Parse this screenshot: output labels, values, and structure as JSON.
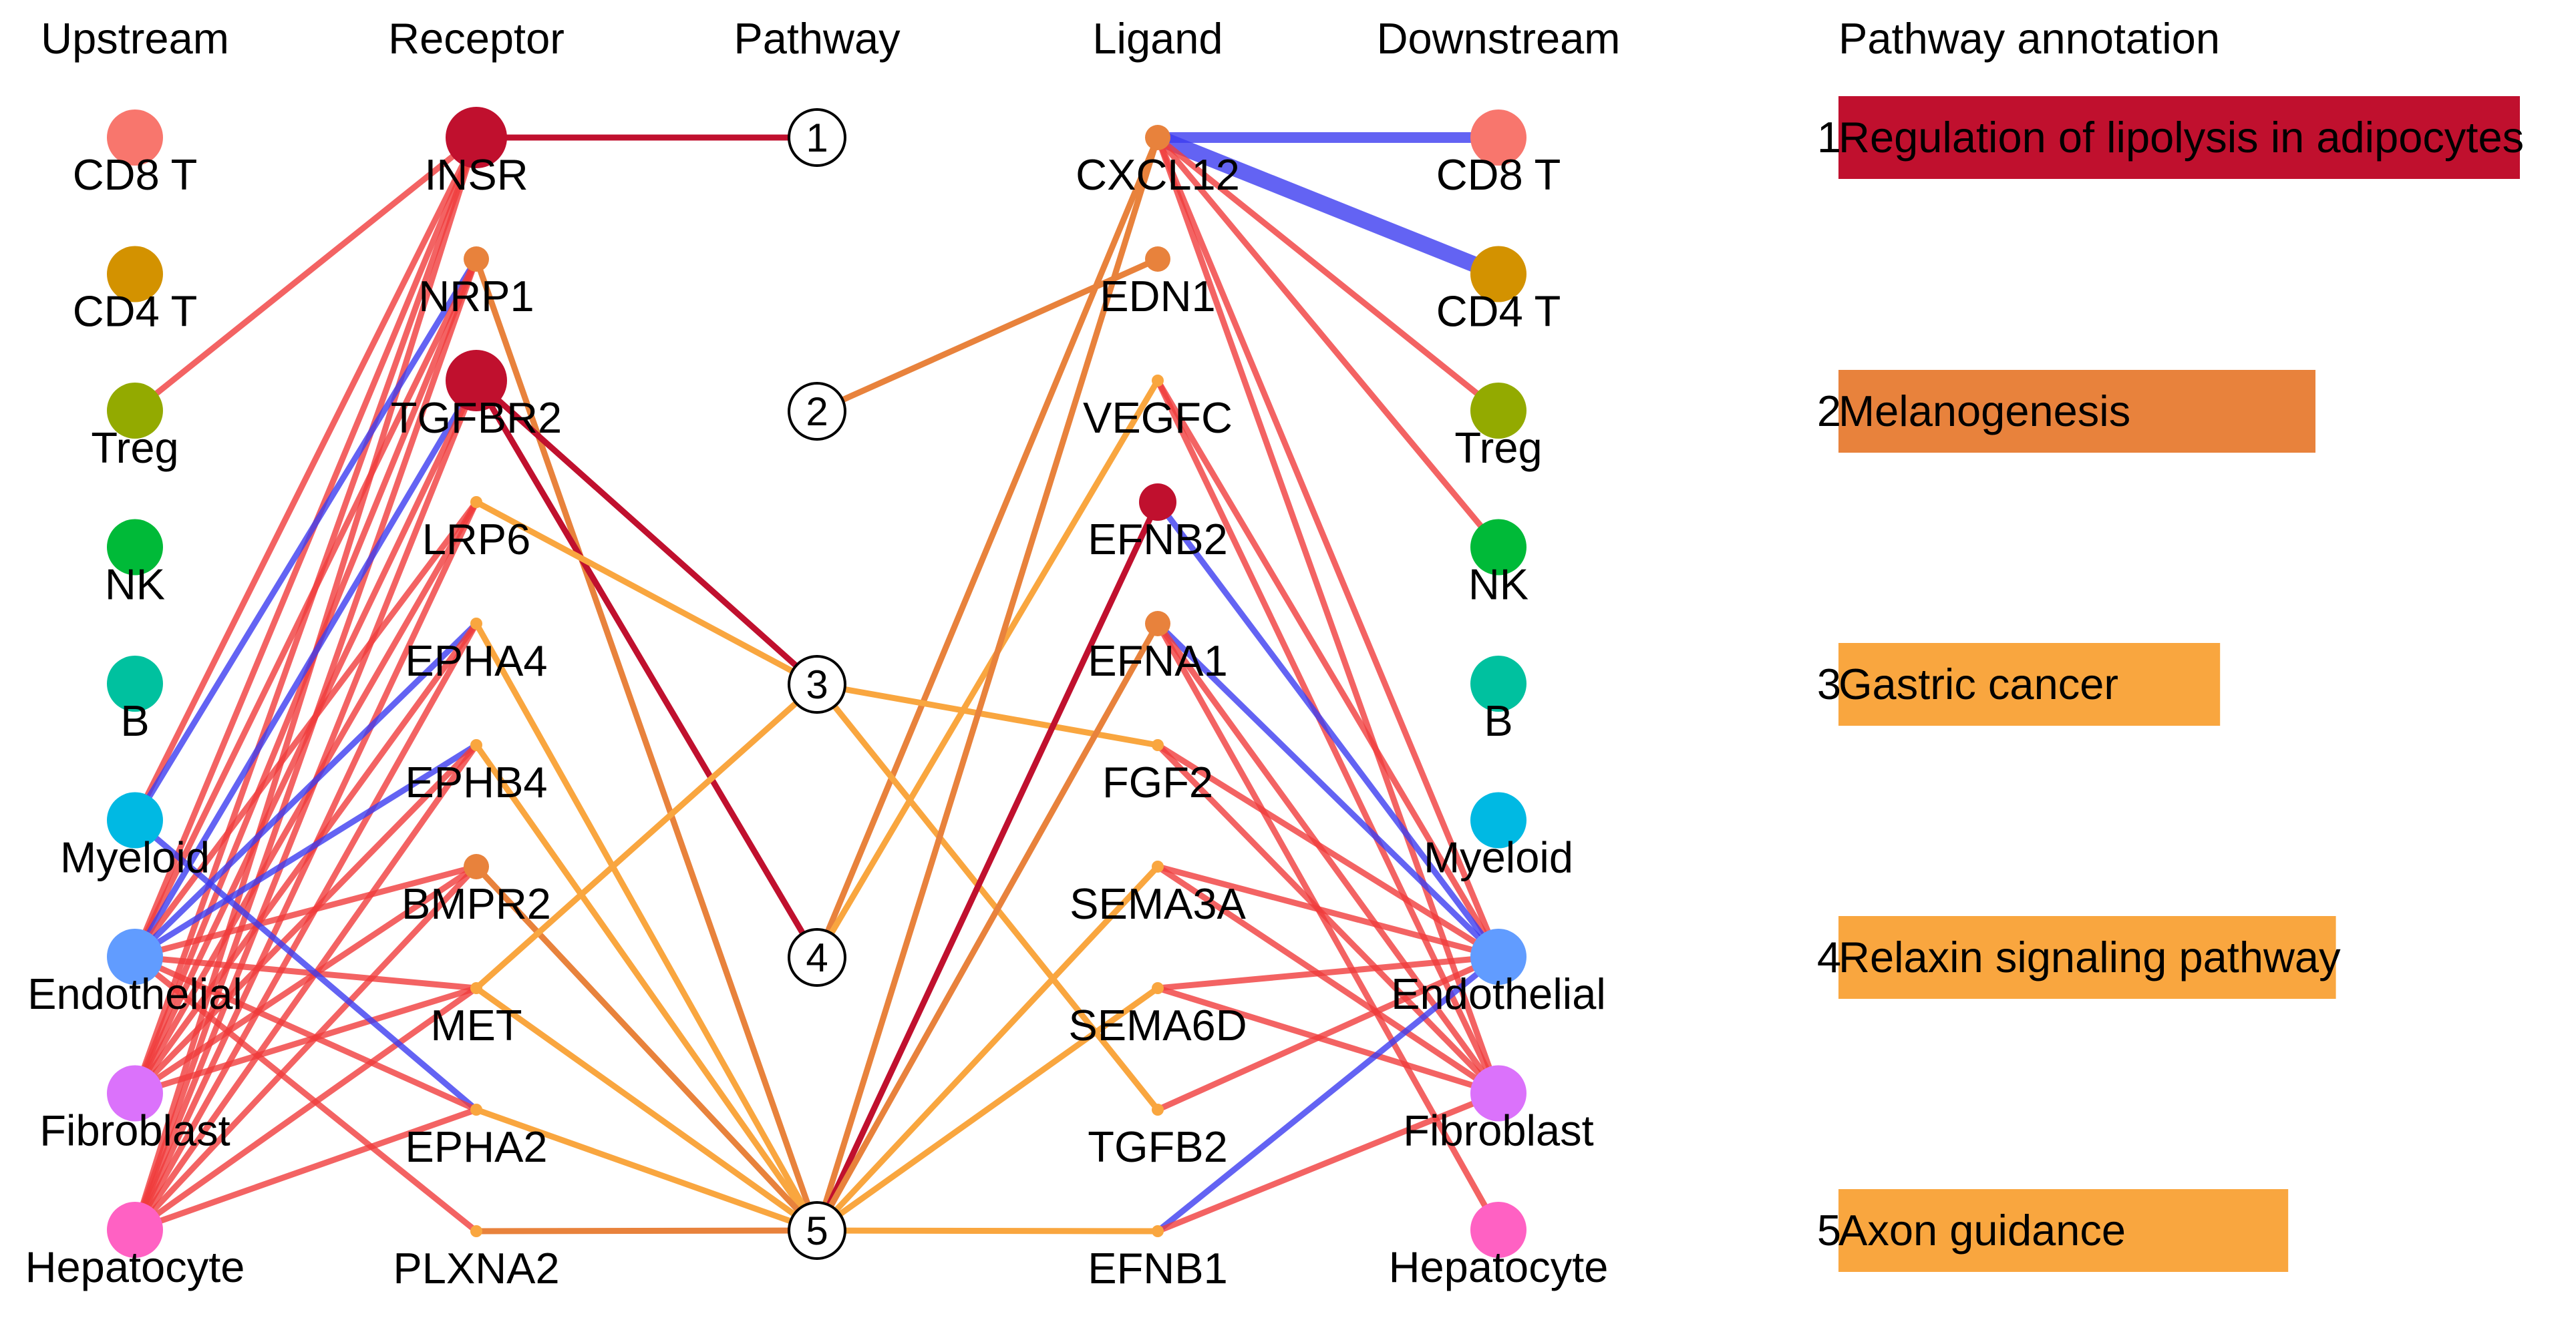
{
  "headers": {
    "upstream": "Upstream",
    "receptor": "Receptor",
    "pathway": "Pathway",
    "ligand": "Ligand",
    "downstream": "Downstream",
    "annotation": "Pathway annotation"
  },
  "colors": {
    "positive": "#f03c3c",
    "negative": "#3c3cf0",
    "pathway_red": "#c0102e",
    "pathway_orange_dark": "#e8823c",
    "pathway_orange": "#f9a63f"
  },
  "upstream_cells": [
    {
      "id": "u_cd8",
      "label": "CD8 T",
      "color": "#f8766d"
    },
    {
      "id": "u_cd4",
      "label": "CD4 T",
      "color": "#d39200"
    },
    {
      "id": "u_treg",
      "label": "Treg",
      "color": "#93aa00"
    },
    {
      "id": "u_nk",
      "label": "NK",
      "color": "#00ba38"
    },
    {
      "id": "u_b",
      "label": "B",
      "color": "#00c19f"
    },
    {
      "id": "u_mye",
      "label": "Myeloid",
      "color": "#00b9e3"
    },
    {
      "id": "u_endo",
      "label": "Endothelial",
      "color": "#619cff"
    },
    {
      "id": "u_fib",
      "label": "Fibroblast",
      "color": "#db72fb"
    },
    {
      "id": "u_hep",
      "label": "Hepatocyte",
      "color": "#ff61c3"
    }
  ],
  "receptors": [
    {
      "id": "r_insr",
      "label": "INSR",
      "color": "#c0102e",
      "size": "large"
    },
    {
      "id": "r_nrp1",
      "label": "NRP1",
      "color": "#e8823c",
      "size": "small"
    },
    {
      "id": "r_tgfbr2",
      "label": "TGFBR2",
      "color": "#c0102e",
      "size": "large"
    },
    {
      "id": "r_lrp6",
      "label": "LRP6",
      "color": "#f9a63f",
      "size": "tiny"
    },
    {
      "id": "r_epha4",
      "label": "EPHA4",
      "color": "#f9a63f",
      "size": "tiny"
    },
    {
      "id": "r_ephb4",
      "label": "EPHB4",
      "color": "#f9a63f",
      "size": "tiny"
    },
    {
      "id": "r_bmpr2",
      "label": "BMPR2",
      "color": "#e8823c",
      "size": "small"
    },
    {
      "id": "r_met",
      "label": "MET",
      "color": "#f9a63f",
      "size": "tiny"
    },
    {
      "id": "r_epha2",
      "label": "EPHA2",
      "color": "#f9a63f",
      "size": "tiny"
    },
    {
      "id": "r_plxna2",
      "label": "PLXNA2",
      "color": "#f9a63f",
      "size": "tiny"
    }
  ],
  "pathways": [
    {
      "id": "p1",
      "label": "1"
    },
    {
      "id": "p2",
      "label": "2"
    },
    {
      "id": "p3",
      "label": "3"
    },
    {
      "id": "p4",
      "label": "4"
    },
    {
      "id": "p5",
      "label": "5"
    }
  ],
  "ligands": [
    {
      "id": "l_cxcl12",
      "label": "CXCL12",
      "color": "#e8823c",
      "size": "small"
    },
    {
      "id": "l_edn1",
      "label": "EDN1",
      "color": "#e8823c",
      "size": "small"
    },
    {
      "id": "l_vegfc",
      "label": "VEGFC",
      "color": "#f9a63f",
      "size": "tiny"
    },
    {
      "id": "l_efnb2",
      "label": "EFNB2",
      "color": "#c0102e",
      "size": "medium"
    },
    {
      "id": "l_efna1",
      "label": "EFNA1",
      "color": "#e8823c",
      "size": "small"
    },
    {
      "id": "l_fgf2",
      "label": "FGF2",
      "color": "#f9a63f",
      "size": "tiny"
    },
    {
      "id": "l_sema3a",
      "label": "SEMA3A",
      "color": "#f9a63f",
      "size": "tiny"
    },
    {
      "id": "l_sema6d",
      "label": "SEMA6D",
      "color": "#f9a63f",
      "size": "tiny"
    },
    {
      "id": "l_tgfb2",
      "label": "TGFB2",
      "color": "#f9a63f",
      "size": "tiny"
    },
    {
      "id": "l_efnb1",
      "label": "EFNB1",
      "color": "#f9a63f",
      "size": "tiny"
    }
  ],
  "downstream_cells": [
    {
      "id": "d_cd8",
      "label": "CD8 T",
      "color": "#f8766d"
    },
    {
      "id": "d_cd4",
      "label": "CD4 T",
      "color": "#d39200"
    },
    {
      "id": "d_treg",
      "label": "Treg",
      "color": "#93aa00"
    },
    {
      "id": "d_nk",
      "label": "NK",
      "color": "#00ba38"
    },
    {
      "id": "d_b",
      "label": "B",
      "color": "#00c19f"
    },
    {
      "id": "d_mye",
      "label": "Myeloid",
      "color": "#00b9e3"
    },
    {
      "id": "d_endo",
      "label": "Endothelial",
      "color": "#619cff"
    },
    {
      "id": "d_fib",
      "label": "Fibroblast",
      "color": "#db72fb"
    },
    {
      "id": "d_hep",
      "label": "Hepatocyte",
      "color": "#ff61c3"
    }
  ],
  "annotations": [
    {
      "num": "1",
      "label": "Regulation of lipolysis in adipocytes",
      "color": "#c0102e",
      "value": 1.0
    },
    {
      "num": "2",
      "label": "Melanogenesis",
      "color": "#e8823c",
      "value": 0.7
    },
    {
      "num": "3",
      "label": "Gastric cancer",
      "color": "#f9a63f",
      "value": 0.56
    },
    {
      "num": "4",
      "label": "Relaxin signaling pathway",
      "color": "#f9a63f",
      "value": 0.73
    },
    {
      "num": "5",
      "label": "Axon guidance",
      "color": "#f9a63f",
      "value": 0.66
    }
  ],
  "edges": [
    {
      "from": "u_treg",
      "to": "r_insr",
      "sign": "pos",
      "w": 1
    },
    {
      "from": "u_mye",
      "to": "r_insr",
      "sign": "pos",
      "w": 1
    },
    {
      "from": "u_endo",
      "to": "r_insr",
      "sign": "pos",
      "w": 1
    },
    {
      "from": "u_fib",
      "to": "r_insr",
      "sign": "pos",
      "w": 1
    },
    {
      "from": "u_hep",
      "to": "r_insr",
      "sign": "pos",
      "w": 1
    },
    {
      "from": "u_mye",
      "to": "r_nrp1",
      "sign": "neg",
      "w": 1
    },
    {
      "from": "u_endo",
      "to": "r_nrp1",
      "sign": "pos",
      "w": 1
    },
    {
      "from": "u_fib",
      "to": "r_nrp1",
      "sign": "pos",
      "w": 1
    },
    {
      "from": "u_hep",
      "to": "r_nrp1",
      "sign": "pos",
      "w": 1
    },
    {
      "from": "u_endo",
      "to": "r_tgfbr2",
      "sign": "neg",
      "w": 1
    },
    {
      "from": "u_fib",
      "to": "r_tgfbr2",
      "sign": "pos",
      "w": 1
    },
    {
      "from": "u_hep",
      "to": "r_tgfbr2",
      "sign": "pos",
      "w": 1
    },
    {
      "from": "u_endo",
      "to": "r_lrp6",
      "sign": "pos",
      "w": 1
    },
    {
      "from": "u_fib",
      "to": "r_lrp6",
      "sign": "pos",
      "w": 1
    },
    {
      "from": "u_hep",
      "to": "r_lrp6",
      "sign": "pos",
      "w": 1
    },
    {
      "from": "u_endo",
      "to": "r_epha4",
      "sign": "neg",
      "w": 1
    },
    {
      "from": "u_fib",
      "to": "r_epha4",
      "sign": "pos",
      "w": 1
    },
    {
      "from": "u_hep",
      "to": "r_epha4",
      "sign": "pos",
      "w": 1
    },
    {
      "from": "u_endo",
      "to": "r_ephb4",
      "sign": "neg",
      "w": 1
    },
    {
      "from": "u_fib",
      "to": "r_ephb4",
      "sign": "pos",
      "w": 1
    },
    {
      "from": "u_hep",
      "to": "r_ephb4",
      "sign": "pos",
      "w": 1
    },
    {
      "from": "u_endo",
      "to": "r_bmpr2",
      "sign": "pos",
      "w": 1
    },
    {
      "from": "u_fib",
      "to": "r_bmpr2",
      "sign": "pos",
      "w": 1
    },
    {
      "from": "u_hep",
      "to": "r_bmpr2",
      "sign": "pos",
      "w": 1
    },
    {
      "from": "u_endo",
      "to": "r_met",
      "sign": "pos",
      "w": 1
    },
    {
      "from": "u_fib",
      "to": "r_met",
      "sign": "pos",
      "w": 1
    },
    {
      "from": "u_hep",
      "to": "r_met",
      "sign": "pos",
      "w": 1
    },
    {
      "from": "u_mye",
      "to": "r_epha2",
      "sign": "neg",
      "w": 1
    },
    {
      "from": "u_endo",
      "to": "r_epha2",
      "sign": "pos",
      "w": 1
    },
    {
      "from": "u_hep",
      "to": "r_epha2",
      "sign": "pos",
      "w": 1
    },
    {
      "from": "u_endo",
      "to": "r_plxna2",
      "sign": "pos",
      "w": 1
    },
    {
      "from": "r_insr",
      "to": "p1",
      "sign": "p1",
      "w": 1
    },
    {
      "from": "r_nrp1",
      "to": "p5",
      "sign": "p2",
      "w": 1
    },
    {
      "from": "r_tgfbr2",
      "to": "p3",
      "sign": "p1",
      "w": 1
    },
    {
      "from": "r_tgfbr2",
      "to": "p4",
      "sign": "p1",
      "w": 1
    },
    {
      "from": "r_lrp6",
      "to": "p3",
      "sign": "p3",
      "w": 1
    },
    {
      "from": "r_epha4",
      "to": "p5",
      "sign": "p3",
      "w": 1
    },
    {
      "from": "r_ephb4",
      "to": "p5",
      "sign": "p3",
      "w": 1
    },
    {
      "from": "r_bmpr2",
      "to": "p5",
      "sign": "p2",
      "w": 1
    },
    {
      "from": "r_met",
      "to": "p3",
      "sign": "p3",
      "w": 1
    },
    {
      "from": "r_met",
      "to": "p5",
      "sign": "p3",
      "w": 1
    },
    {
      "from": "r_epha2",
      "to": "p5",
      "sign": "p3",
      "w": 1
    },
    {
      "from": "r_plxna2",
      "to": "p5",
      "sign": "p2",
      "w": 1
    },
    {
      "from": "p2",
      "to": "l_edn1",
      "sign": "p2",
      "w": 1
    },
    {
      "from": "p4",
      "to": "l_cxcl12",
      "sign": "p2",
      "w": 1
    },
    {
      "from": "p4",
      "to": "l_vegfc",
      "sign": "p3",
      "w": 1
    },
    {
      "from": "p3",
      "to": "l_fgf2",
      "sign": "p3",
      "w": 1
    },
    {
      "from": "p3",
      "to": "l_tgfb2",
      "sign": "p3",
      "w": 1
    },
    {
      "from": "p5",
      "to": "l_cxcl12",
      "sign": "p2",
      "w": 1
    },
    {
      "from": "p5",
      "to": "l_efnb2",
      "sign": "p1",
      "w": 1
    },
    {
      "from": "p5",
      "to": "l_efna1",
      "sign": "p2",
      "w": 1
    },
    {
      "from": "p5",
      "to": "l_sema3a",
      "sign": "p3",
      "w": 1
    },
    {
      "from": "p5",
      "to": "l_sema6d",
      "sign": "p3",
      "w": 1
    },
    {
      "from": "p5",
      "to": "l_efnb1",
      "sign": "p3",
      "w": 1
    },
    {
      "from": "l_cxcl12",
      "to": "d_cd8",
      "sign": "neg",
      "w": 2
    },
    {
      "from": "l_cxcl12",
      "to": "d_cd4",
      "sign": "neg",
      "w": 3
    },
    {
      "from": "l_cxcl12",
      "to": "d_treg",
      "sign": "pos",
      "w": 1
    },
    {
      "from": "l_cxcl12",
      "to": "d_nk",
      "sign": "pos",
      "w": 1
    },
    {
      "from": "l_cxcl12",
      "to": "d_endo",
      "sign": "pos",
      "w": 1
    },
    {
      "from": "l_cxcl12",
      "to": "d_fib",
      "sign": "pos",
      "w": 1
    },
    {
      "from": "l_vegfc",
      "to": "d_fib",
      "sign": "pos",
      "w": 1
    },
    {
      "from": "l_vegfc",
      "to": "d_endo",
      "sign": "pos",
      "w": 1
    },
    {
      "from": "l_efnb2",
      "to": "d_endo",
      "sign": "neg",
      "w": 1
    },
    {
      "from": "l_efna1",
      "to": "d_endo",
      "sign": "neg",
      "w": 1
    },
    {
      "from": "l_efna1",
      "to": "d_fib",
      "sign": "pos",
      "w": 1
    },
    {
      "from": "l_efna1",
      "to": "d_hep",
      "sign": "pos",
      "w": 1
    },
    {
      "from": "l_fgf2",
      "to": "d_endo",
      "sign": "pos",
      "w": 1
    },
    {
      "from": "l_fgf2",
      "to": "d_fib",
      "sign": "pos",
      "w": 1
    },
    {
      "from": "l_sema3a",
      "to": "d_endo",
      "sign": "pos",
      "w": 1
    },
    {
      "from": "l_sema3a",
      "to": "d_fib",
      "sign": "pos",
      "w": 1
    },
    {
      "from": "l_sema6d",
      "to": "d_endo",
      "sign": "pos",
      "w": 1
    },
    {
      "from": "l_sema6d",
      "to": "d_fib",
      "sign": "pos",
      "w": 1
    },
    {
      "from": "l_tgfb2",
      "to": "d_endo",
      "sign": "pos",
      "w": 1
    },
    {
      "from": "l_efnb1",
      "to": "d_endo",
      "sign": "neg",
      "w": 1
    },
    {
      "from": "l_efnb1",
      "to": "d_fib",
      "sign": "pos",
      "w": 1
    }
  ]
}
